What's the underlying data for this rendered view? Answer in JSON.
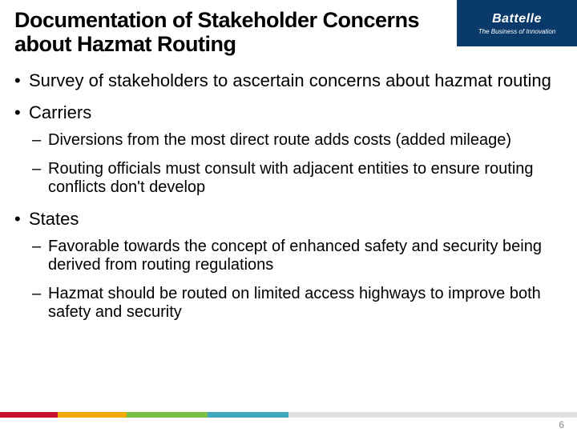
{
  "header": {
    "band_color": "#0a3a6a",
    "logo_name": "Battelle",
    "logo_tagline": "The Business of Innovation"
  },
  "title": "Documentation of Stakeholder Concerns about Hazmat Routing",
  "bullets": [
    {
      "text": "Survey of stakeholders to ascertain concerns about hazmat routing"
    },
    {
      "text": "Carriers",
      "sub": [
        "Diversions from the most direct route adds costs (added mileage)",
        "Routing officials must consult with adjacent entities to ensure routing conflicts don't develop"
      ]
    },
    {
      "text": "States",
      "sub": [
        "Favorable towards the concept of enhanced safety and security being derived from routing regulations",
        "Hazmat should be routed on limited access highways to improve both safety and security"
      ]
    }
  ],
  "footer_colors": [
    {
      "color": "#c8102e",
      "width_pct": 10
    },
    {
      "color": "#f2a900",
      "width_pct": 12
    },
    {
      "color": "#7ac143",
      "width_pct": 14
    },
    {
      "color": "#3fa9c1",
      "width_pct": 14
    },
    {
      "color": "#e0e0e0",
      "width_pct": 50
    }
  ],
  "page_number": "6"
}
